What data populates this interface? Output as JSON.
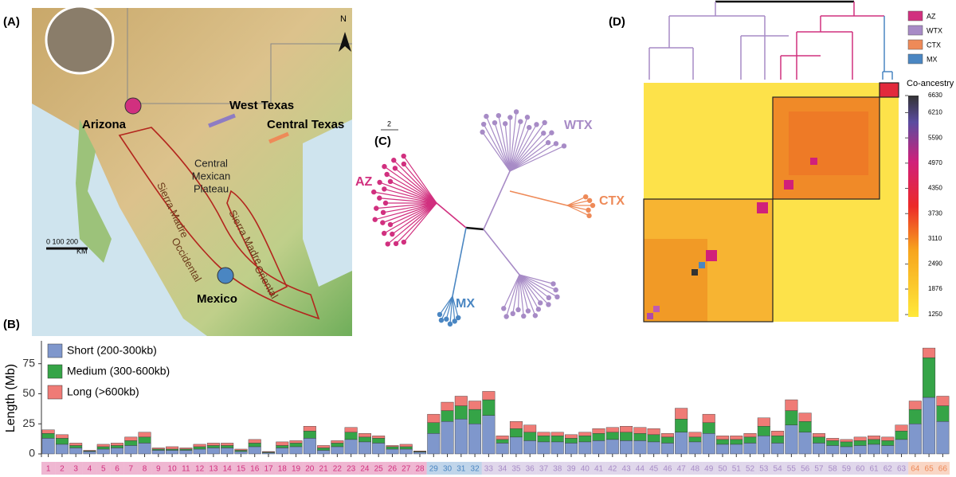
{
  "panel_a": {
    "label": "(A)",
    "north": "N",
    "sites": [
      "Arizona",
      "West Texas",
      "Central Texas",
      "Mexico"
    ],
    "occidental": [
      "Sierra Madre",
      "Occidental"
    ],
    "plateau": [
      "Central",
      "Mexican",
      "Plateau"
    ],
    "oriental": [
      "Sierra Madre",
      "Oriental"
    ],
    "scale": "0  100  200",
    "scale_unit": "KM"
  },
  "panel_c": {
    "label": "(C)",
    "scale": "2",
    "clades": [
      {
        "name": "AZ",
        "color": "#d1307f"
      },
      {
        "name": "WTX",
        "color": "#a78bc6"
      },
      {
        "name": "CTX",
        "color": "#ee8a58"
      },
      {
        "name": "MX",
        "color": "#4a86c2"
      }
    ]
  },
  "panel_d": {
    "label": "(D)",
    "legend": [
      {
        "name": "AZ",
        "color": "#d1307f"
      },
      {
        "name": "WTX",
        "color": "#a78bc6"
      },
      {
        "name": "CTX",
        "color": "#ee8a58"
      },
      {
        "name": "MX",
        "color": "#4a86c2"
      }
    ],
    "colorbar_title": "Co-ancestry",
    "colorbar_lim": [
      1250,
      6630
    ],
    "colorbar_ticks": [
      6630,
      6210,
      5590,
      4970,
      4350,
      3730,
      3110,
      2490,
      1876,
      1250
    ]
  },
  "chart_data": {
    "type": "stacked_bar",
    "panel_label": "(B)",
    "y_label": "Length (Mb)",
    "ylim": [
      0,
      94
    ],
    "yticks": [
      0,
      25,
      50,
      75
    ],
    "categories": [
      "1",
      "2",
      "3",
      "4",
      "5",
      "6",
      "7",
      "8",
      "9",
      "10",
      "11",
      "12",
      "13",
      "14",
      "15",
      "16",
      "17",
      "18",
      "19",
      "20",
      "21",
      "22",
      "23",
      "24",
      "25",
      "26",
      "27",
      "28",
      "29",
      "30",
      "31",
      "32",
      "33",
      "34",
      "35",
      "36",
      "37",
      "38",
      "39",
      "40",
      "41",
      "42",
      "43",
      "44",
      "45",
      "46",
      "47",
      "48",
      "49",
      "50",
      "51",
      "52",
      "53",
      "54",
      "55",
      "56",
      "57",
      "58",
      "59",
      "60",
      "61",
      "62",
      "63",
      "64",
      "65",
      "66"
    ],
    "label_colors": [
      "#d1307f",
      "#d1307f",
      "#d1307f",
      "#d1307f",
      "#d1307f",
      "#d1307f",
      "#d1307f",
      "#d1307f",
      "#d1307f",
      "#d1307f",
      "#d1307f",
      "#d1307f",
      "#d1307f",
      "#d1307f",
      "#d1307f",
      "#d1307f",
      "#d1307f",
      "#d1307f",
      "#d1307f",
      "#d1307f",
      "#d1307f",
      "#d1307f",
      "#d1307f",
      "#d1307f",
      "#d1307f",
      "#d1307f",
      "#d1307f",
      "#d1307f",
      "#4a86c2",
      "#4a86c2",
      "#4a86c2",
      "#4a86c2",
      "#a78bc6",
      "#a78bc6",
      "#a78bc6",
      "#a78bc6",
      "#a78bc6",
      "#a78bc6",
      "#a78bc6",
      "#a78bc6",
      "#a78bc6",
      "#a78bc6",
      "#a78bc6",
      "#a78bc6",
      "#a78bc6",
      "#a78bc6",
      "#a78bc6",
      "#a78bc6",
      "#a78bc6",
      "#a78bc6",
      "#a78bc6",
      "#a78bc6",
      "#a78bc6",
      "#a78bc6",
      "#a78bc6",
      "#a78bc6",
      "#a78bc6",
      "#a78bc6",
      "#a78bc6",
      "#a78bc6",
      "#a78bc6",
      "#a78bc6",
      "#a78bc6",
      "#ee8a58",
      "#ee8a58",
      "#ee8a58"
    ],
    "series": [
      {
        "name": "Short (200-300kb)",
        "color": "#7f97cc",
        "values": [
          13,
          8,
          5,
          2,
          4,
          5,
          7,
          9,
          3,
          3,
          3,
          4,
          5,
          5,
          2,
          6,
          1,
          5,
          6,
          13,
          3,
          6,
          12,
          10,
          9,
          4,
          4,
          1.5,
          17,
          27,
          29,
          25,
          32,
          9,
          14,
          11,
          10,
          10,
          9,
          10,
          11,
          12,
          11,
          11,
          10,
          9,
          18,
          10,
          17,
          8,
          8,
          9,
          15,
          9,
          24,
          18,
          9,
          7,
          6,
          7,
          8,
          7,
          12,
          25,
          47,
          27
        ]
      },
      {
        "name": "Medium (300-600kb)",
        "color": "#35a447",
        "values": [
          4,
          5,
          2,
          0.5,
          2,
          2,
          4,
          5,
          1,
          1,
          1,
          2,
          2,
          2,
          1,
          3,
          0.5,
          2,
          3,
          6,
          2,
          3,
          6,
          4,
          4,
          2,
          2,
          0.5,
          9,
          9,
          11,
          12,
          13,
          3,
          7,
          7,
          5,
          5,
          4,
          5,
          6,
          6,
          7,
          6,
          6,
          5,
          11,
          4,
          9,
          4,
          4,
          5,
          8,
          6,
          12,
          9,
          5,
          4,
          4,
          4,
          4,
          4,
          7,
          12,
          33,
          13
        ]
      },
      {
        "name": "Long (>600kb)",
        "color": "#ef7b76",
        "values": [
          3,
          3,
          2,
          0.5,
          2,
          2,
          3,
          4,
          1,
          2,
          1,
          2,
          2,
          2,
          1,
          3,
          0.5,
          3,
          2,
          4,
          2,
          2,
          4,
          3,
          2,
          1,
          2,
          0.5,
          7,
          7,
          8,
          7,
          7,
          3,
          6,
          6,
          3,
          3,
          3,
          3,
          4,
          4,
          5,
          5,
          5,
          3,
          9,
          4,
          7,
          3,
          3,
          3,
          7,
          4,
          9,
          7,
          3,
          2,
          2,
          3,
          3,
          3,
          5,
          7,
          8,
          8
        ]
      }
    ]
  }
}
